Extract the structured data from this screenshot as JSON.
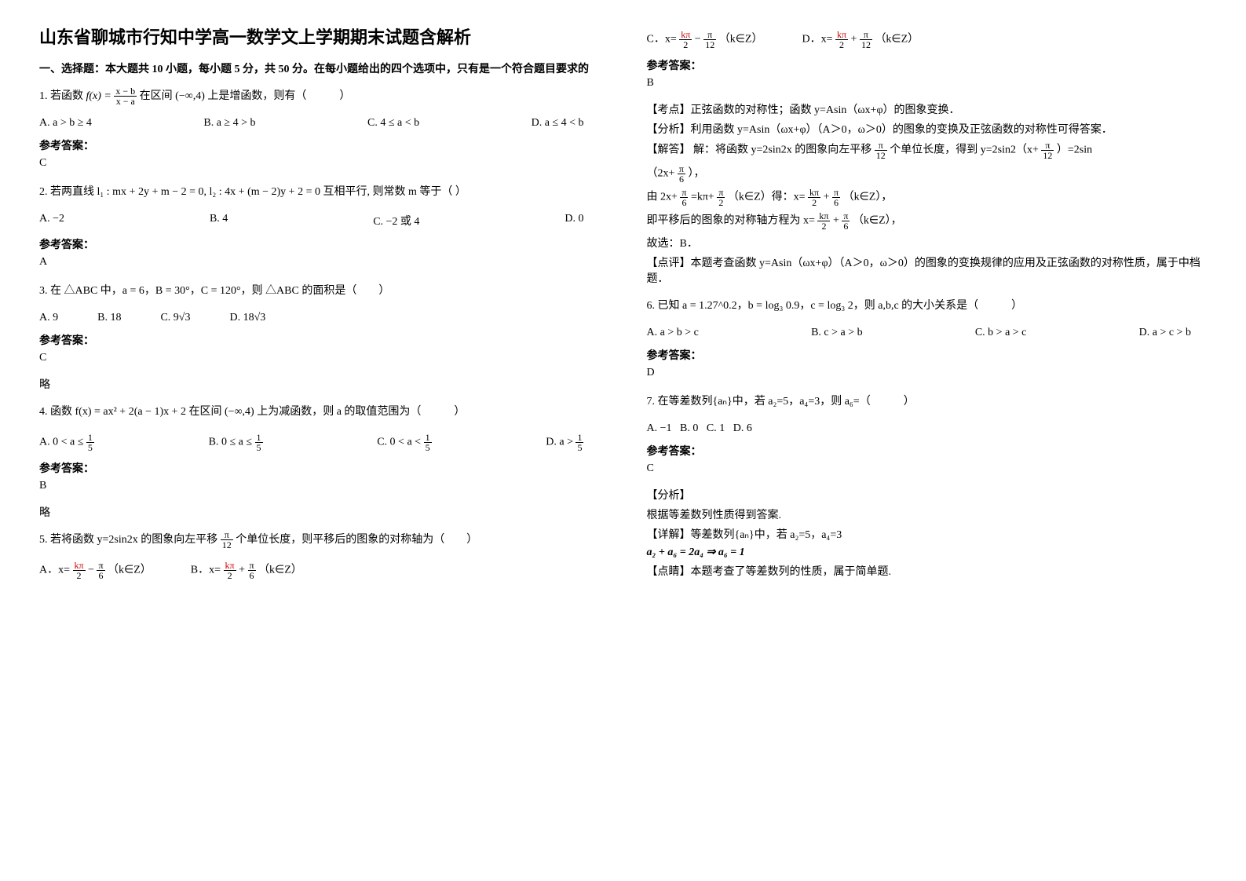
{
  "title": "山东省聊城市行知中学高一数学文上学期期末试题含解析",
  "section1": "一、选择题：本大题共 10 小题，每小题 5 分，共 50 分。在每小题给出的四个选项中，只有是一个符合题目要求的",
  "q1": {
    "stem_prefix": "1. 若函数",
    "stem_suffix": "在区间 (−∞,4) 上是增函数，则有（　　　）",
    "formula_num": "x − b",
    "formula_den": "x − a",
    "optA": "A. a > b ≥ 4",
    "optB": "B. a ≥ 4 > b",
    "optC": "C. 4 ≤ a < b",
    "optD": "D. a ≤ 4 < b",
    "ans_label": "参考答案：",
    "ans": "C"
  },
  "q2": {
    "stem": "2. 若两直线 l₁ : mx + 2y + m − 2 = 0, l₂ : 4x + (m − 2)y + 2 = 0 互相平行, 则常数 m 等于（ ）",
    "optA": "A. −2",
    "optB": "B. 4",
    "optC": "C. −2 或 4",
    "optD": "D. 0",
    "ans_label": "参考答案：",
    "ans": "A"
  },
  "q3": {
    "stem": "3. 在 △ABC 中，a = 6，B = 30°，C = 120°，则 △ABC 的面积是（　　）",
    "optA": "A. 9",
    "optB": "B. 18",
    "optC": "C. 9√3",
    "optD": "D. 18√3",
    "ans_label": "参考答案：",
    "ans": "C",
    "note": "略"
  },
  "q4": {
    "stem": "4. 函数 f(x) = ax² + 2(a − 1)x + 2 在区间 (−∞,4) 上为减函数，则 a 的取值范围为（　　　）",
    "optA_pre": "A.",
    "optA_expr": "0 < a ≤ ",
    "optB_pre": "B.",
    "optB_expr": "0 ≤ a ≤ ",
    "optC_pre": "C.",
    "optC_expr": "0 < a < ",
    "optD_pre": "D.",
    "optD_expr": "a > ",
    "frac_num": "1",
    "frac_den": "5",
    "ans_label": "参考答案：",
    "ans": "B",
    "note": "略"
  },
  "q5": {
    "stem_prefix": "5. 若将函数 y=2sin2x 的图象向左平移",
    "stem_suffix": "个单位长度，则平移后的图象的对称轴为（　　）",
    "pi12_num": "π",
    "pi12_den": "12",
    "optA_pre": "A．x=",
    "optB_pre": "B．x=",
    "optC_pre": "C．x=",
    "optD_pre": "D．x=",
    "kpi2_num": "kπ",
    "kpi2_den": "2",
    "pi6_num": "π",
    "pi6_den": "6",
    "kez": "（k∈Z）",
    "minus": " − ",
    "plus": " + ",
    "ans_label": "参考答案：",
    "ans": "B",
    "kaodian_label": "【考点】",
    "kaodian": "正弦函数的对称性；函数 y=Asin（ωx+φ）的图象变换．",
    "fenxi_label": "【分析】",
    "fenxi": "利用函数 y=Asin（ωx+φ）（A＞0，ω＞0）的图象的变换及正弦函数的对称性可得答案．",
    "jieda_label": "【解答】",
    "jieda1_pre": "解：将函数 y=2sin2x 的图象向左平移",
    "jieda1_mid": "个单位长度，得到 y=2sin2（x+",
    "jieda1_suf": "）=2sin",
    "jieda2": "（2x+",
    "jieda2_suf": "），",
    "jieda3_pre": "由 2x+",
    "jieda3_mid": " =kπ+",
    "jieda3_mid2": "（k∈Z）得：x= ",
    "jieda3_end": "（k∈Z），",
    "jieda4_pre": "即平移后的图象的对称轴方程为 x= ",
    "jieda4_end": "（k∈Z），",
    "jieda5": "故选：B．",
    "dianping_label": "【点评】",
    "dianping": "本题考查函数 y=Asin（ωx+φ）（A＞0，ω＞0）的图象的变换规律的应用及正弦函数的对称性质，属于中档题．",
    "pi2_num": "π",
    "pi2_den": "2",
    "kpi_num": "kπ",
    "kpi_den": "2"
  },
  "q6": {
    "stem": "6. 已知 a = 1.27^0.2，b = log₃ 0.9，c = log₃ 2，则 a,b,c 的大小关系是（　　　）",
    "optA": "A. a > b > c",
    "optB": "B. c > a > b",
    "optC": "C. b > a > c",
    "optD": "D. a > c > b",
    "ans_label": "参考答案：",
    "ans": "D"
  },
  "q7": {
    "stem": "7. 在等差数列{aₙ}中，若 a₂=5，a₄=3，则 a₆=（　　　）",
    "optA": "A. −1",
    "optB": "B. 0",
    "optC": "C. 1",
    "optD": "D. 6",
    "ans_label": "参考答案：",
    "ans": "C",
    "fenxi_label": "【分析】",
    "fenxi": "根据等差数列性质得到答案.",
    "xiangjie_label": "【详解】",
    "xiangjie": "等差数列{aₙ}中，若 a₂=5，a₄=3",
    "eq": "a₂ + a₆ = 2a₄ ⇒ a₆ = 1",
    "dianjing_label": "【点睛】",
    "dianjing": "本题考查了等差数列的性质，属于简单题."
  }
}
